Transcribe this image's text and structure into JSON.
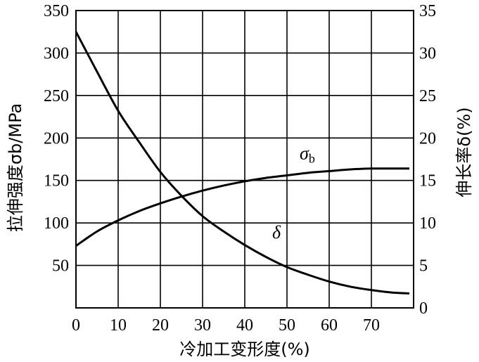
{
  "chart_data": {
    "type": "line",
    "xlabel": "冷加工变形度(%)",
    "ylabel_left": "拉伸强度σb/MPa",
    "ylabel_right": "伸长率δ(%)",
    "xlim": [
      0,
      80
    ],
    "ylim_left": [
      0,
      350
    ],
    "ylim_right": [
      0,
      35
    ],
    "grid": true,
    "x_ticks": [
      "0",
      "10",
      "20",
      "30",
      "40",
      "50",
      "60",
      "70"
    ],
    "y_left_ticks": [
      "50",
      "100",
      "150",
      "200",
      "250",
      "300",
      "350"
    ],
    "y_right_ticks": [
      "0",
      "5",
      "10",
      "15",
      "20",
      "25",
      "30",
      "35"
    ],
    "series": [
      {
        "name": "σb",
        "axis": "left",
        "x": [
          0,
          5,
          10,
          15,
          20,
          25,
          30,
          35,
          40,
          45,
          50,
          55,
          60,
          65,
          70,
          75,
          79
        ],
        "values": [
          73,
          90,
          103,
          114,
          123,
          131,
          138,
          144,
          149,
          153,
          156,
          159,
          161,
          163,
          164,
          164,
          164
        ]
      },
      {
        "name": "δ",
        "axis": "right",
        "x": [
          0,
          5,
          10,
          15,
          20,
          25,
          30,
          35,
          40,
          45,
          50,
          55,
          60,
          65,
          70,
          75,
          79
        ],
        "values": [
          32.5,
          27.8,
          23.2,
          19.5,
          16.0,
          13.2,
          10.8,
          9.0,
          7.4,
          6.0,
          4.8,
          3.9,
          3.1,
          2.5,
          2.1,
          1.8,
          1.7
        ]
      }
    ],
    "annotations": [
      {
        "text": "σ",
        "sub": "b",
        "series": "σb"
      },
      {
        "text": "δ",
        "series": "δ"
      }
    ]
  }
}
